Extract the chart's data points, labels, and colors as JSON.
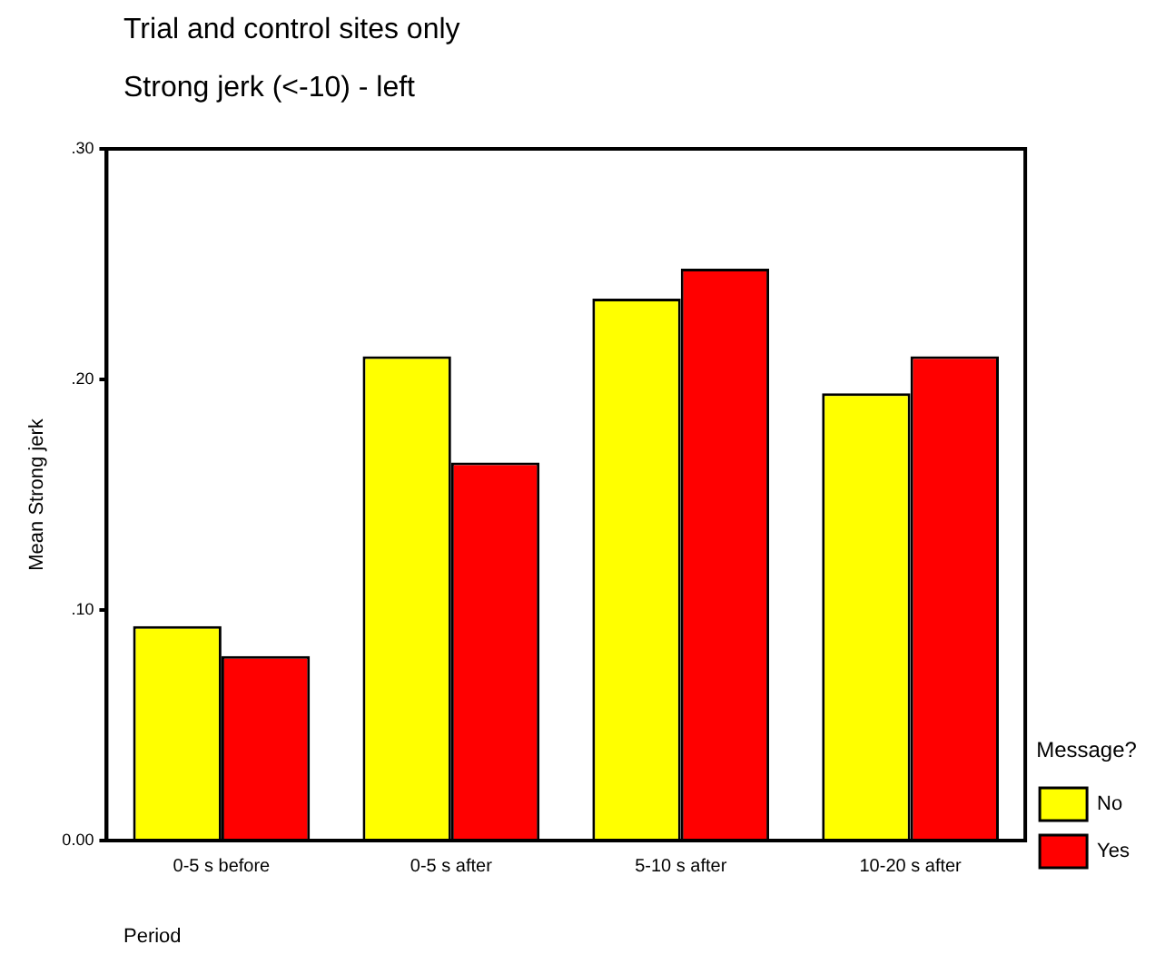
{
  "chart_data": {
    "type": "bar",
    "title": "Trial and control sites only",
    "subtitle": "Strong jerk (<-10)   - left",
    "xlabel": "Period",
    "ylabel": "Mean Strong jerk",
    "legend_title": "Message?",
    "categories": [
      "0-5 s before",
      "0-5 s after",
      "5-10 s after",
      "10-20 s after"
    ],
    "series": [
      {
        "name": "No",
        "color": "#ffff00",
        "values": [
          0.093,
          0.21,
          0.235,
          0.194
        ]
      },
      {
        "name": "Yes",
        "color": "#ff0000",
        "values": [
          0.08,
          0.164,
          0.248,
          0.21
        ]
      }
    ],
    "ylim": [
      0,
      0.3
    ],
    "yticks": [
      {
        "value": 0,
        "label": "0.00"
      },
      {
        "value": 0.1,
        "label": ".10"
      },
      {
        "value": 0.2,
        "label": ".20"
      },
      {
        "value": 0.3,
        "label": ".30"
      }
    ],
    "grid": false,
    "legend": "right"
  }
}
